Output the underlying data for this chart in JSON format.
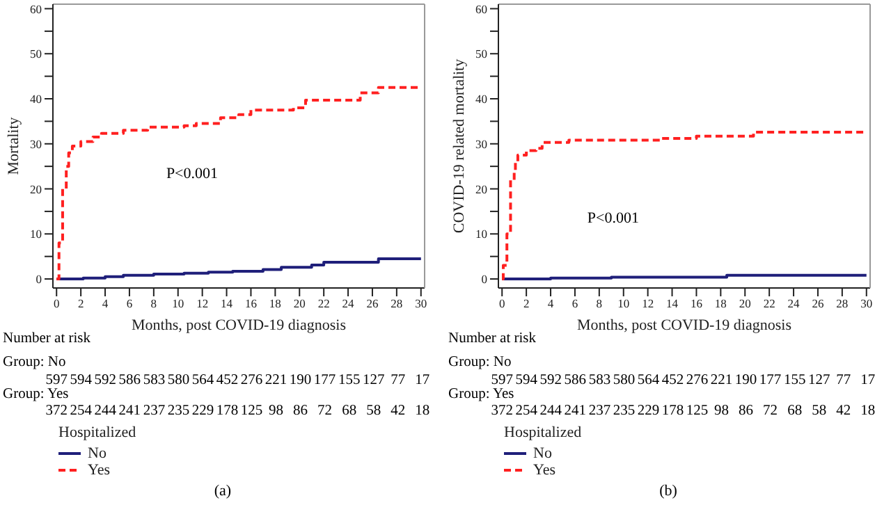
{
  "chart_data": [
    {
      "type": "step",
      "xlabel": "Months, post COVID-19 diagnosis",
      "ylabel": "Mortality",
      "legend_title": "Hospitalized",
      "legend": "bottom",
      "xlim": [
        -0.3,
        30.3
      ],
      "ylim": [
        -2,
        61
      ],
      "xticks": [
        0,
        2,
        4,
        6,
        8,
        10,
        12,
        14,
        16,
        18,
        20,
        22,
        24,
        26,
        28,
        30
      ],
      "yticks": [
        0,
        {
          "value": 5,
          "label": null
        },
        10,
        {
          "value": 15,
          "label": null
        },
        20,
        {
          "value": 25,
          "label": null
        },
        30,
        {
          "value": 35,
          "label": null
        },
        40,
        {
          "value": 45,
          "label": null
        },
        50,
        {
          "value": 55,
          "label": null
        },
        60
      ],
      "annotations": [
        "P<0.001",
        "Number at risk",
        "Group: No",
        "597 594 592 586 583 580 564 452 276 221 190 177 155 127 77 17",
        "Group: Yes",
        "372 254 244 241 237 235 229 178 125 98 86 72 68 58 42 18",
        "(a)"
      ],
      "series": [
        {
          "name": "No",
          "color": "#1f1f7a",
          "line_style": "solid",
          "x": [
            0,
            2.2,
            4,
            5.5,
            8,
            10.5,
            12.5,
            14.5,
            17,
            18.5,
            21,
            22,
            26.5,
            30
          ],
          "values": [
            0,
            0.2,
            0.5,
            0.8,
            1.1,
            1.3,
            1.5,
            1.7,
            2.1,
            2.6,
            3.1,
            3.7,
            4.5,
            4.5
          ]
        },
        {
          "name": "Yes",
          "color": "#ff2020",
          "line_style": "dashed",
          "x": [
            0,
            0.2,
            0.5,
            0.8,
            1,
            1.3,
            2,
            3,
            3.7,
            5.5,
            7.5,
            10.5,
            11.5,
            13.5,
            15,
            16,
            19.5,
            20.5,
            25,
            26.5,
            30
          ],
          "values": [
            0,
            8,
            20,
            25,
            28,
            29.5,
            30.5,
            31.5,
            32.3,
            33,
            33.7,
            34,
            34.5,
            35.8,
            36.5,
            37.5,
            38,
            39.7,
            41.3,
            42.5,
            42.5
          ]
        }
      ]
    },
    {
      "type": "step",
      "xlabel": "Months, post COVID-19 diagnosis",
      "ylabel": "COVID-19 related mortality",
      "legend_title": "Hospitalized",
      "legend": "bottom",
      "xlim": [
        -0.3,
        30.3
      ],
      "ylim": [
        -2,
        61
      ],
      "xticks": [
        0,
        2,
        4,
        6,
        8,
        10,
        12,
        14,
        16,
        18,
        20,
        22,
        24,
        26,
        28,
        30
      ],
      "yticks": [
        0,
        {
          "value": 5,
          "label": null
        },
        10,
        {
          "value": 15,
          "label": null
        },
        20,
        {
          "value": 25,
          "label": null
        },
        30,
        {
          "value": 35,
          "label": null
        },
        40,
        {
          "value": 45,
          "label": null
        },
        50,
        {
          "value": 55,
          "label": null
        },
        60
      ],
      "annotations": [
        "P<0.001",
        "Number at risk",
        "Group: No",
        "597 594 592 586 583 580 564 452 276 221 190 177 155 127 77 17",
        "Group: Yes",
        "372 254 244 241 237 235 229 178 125 98 86 72 68 58 42 18",
        "(b)"
      ],
      "series": [
        {
          "name": "No",
          "color": "#1f1f7a",
          "line_style": "solid",
          "x": [
            0,
            4,
            9,
            18.5,
            30
          ],
          "values": [
            0,
            0.2,
            0.4,
            0.8,
            0.8
          ]
        },
        {
          "name": "Yes",
          "color": "#ff2020",
          "line_style": "dashed",
          "x": [
            0,
            0.1,
            0.4,
            0.7,
            1,
            1.1,
            1.3,
            2,
            2.8,
            3.3,
            5.5,
            13,
            16,
            20.7,
            30
          ],
          "values": [
            0,
            3,
            10,
            22,
            24,
            26,
            27.5,
            28.5,
            29,
            30.3,
            30.8,
            31.2,
            31.7,
            32.6,
            32.6
          ]
        }
      ]
    }
  ]
}
